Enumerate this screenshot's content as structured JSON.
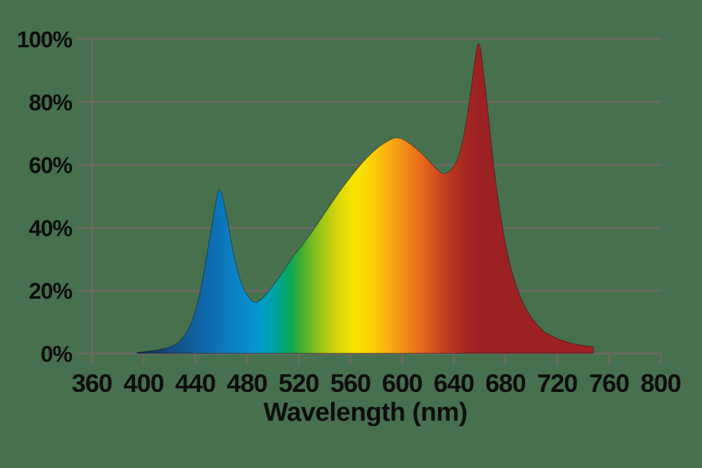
{
  "page": {
    "background_color": "#47704e"
  },
  "chart_data": {
    "type": "area",
    "xlabel": "Wavelength (nm)",
    "ylabel": "",
    "xlim": [
      360,
      800
    ],
    "ylim": [
      0,
      100
    ],
    "x_ticks": [
      360,
      400,
      440,
      480,
      520,
      560,
      600,
      640,
      680,
      720,
      760,
      800
    ],
    "x_tick_labels": [
      "360",
      "400",
      "440",
      "480",
      "520",
      "560",
      "600",
      "640",
      "680",
      "720",
      "760",
      "800"
    ],
    "y_ticks": [
      0,
      20,
      40,
      60,
      80,
      100
    ],
    "y_tick_labels": [
      "0%",
      "20%",
      "40%",
      "60%",
      "80%",
      "100%"
    ],
    "grid": "horizontal-gridlines-every-20pct",
    "legend": "none",
    "series": [
      {
        "name": "relative-spectral-intensity-pct",
        "points": [
          [
            395,
            0.3
          ],
          [
            405,
            0.8
          ],
          [
            415,
            1.5
          ],
          [
            425,
            3
          ],
          [
            432,
            6
          ],
          [
            438,
            11
          ],
          [
            444,
            20
          ],
          [
            450,
            34
          ],
          [
            455,
            46
          ],
          [
            458,
            52
          ],
          [
            461,
            50
          ],
          [
            465,
            42
          ],
          [
            470,
            31
          ],
          [
            476,
            22
          ],
          [
            482,
            17.5
          ],
          [
            487,
            16.3
          ],
          [
            493,
            18
          ],
          [
            500,
            21.5
          ],
          [
            508,
            26
          ],
          [
            515,
            30.5
          ],
          [
            522,
            34
          ],
          [
            530,
            38.5
          ],
          [
            540,
            44.5
          ],
          [
            550,
            50.5
          ],
          [
            560,
            56
          ],
          [
            570,
            61
          ],
          [
            580,
            65
          ],
          [
            590,
            67.8
          ],
          [
            596,
            68.6
          ],
          [
            602,
            67.8
          ],
          [
            610,
            65.5
          ],
          [
            618,
            62.5
          ],
          [
            626,
            59
          ],
          [
            632,
            57.2
          ],
          [
            638,
            58.5
          ],
          [
            644,
            63
          ],
          [
            649,
            72
          ],
          [
            653,
            83
          ],
          [
            657,
            95
          ],
          [
            659,
            98.5
          ],
          [
            661,
            96
          ],
          [
            664,
            86
          ],
          [
            668,
            71
          ],
          [
            672,
            56
          ],
          [
            677,
            42
          ],
          [
            682,
            31
          ],
          [
            688,
            22
          ],
          [
            695,
            15
          ],
          [
            702,
            10.5
          ],
          [
            710,
            7
          ],
          [
            720,
            4.8
          ],
          [
            730,
            3.4
          ],
          [
            740,
            2.6
          ],
          [
            748,
            2.2
          ]
        ]
      }
    ],
    "peaks_read_from_chart": [
      {
        "wavelength_nm": 458,
        "value_pct": 52
      },
      {
        "wavelength_nm": 596,
        "value_pct": 68.5
      },
      {
        "wavelength_nm": 659,
        "value_pct": 98.5
      }
    ],
    "valleys_read_from_chart": [
      {
        "wavelength_nm": 487,
        "value_pct": 16.5
      },
      {
        "wavelength_nm": 632,
        "value_pct": 57
      }
    ],
    "gradient_stops": [
      {
        "wavelength": 395,
        "color": "#0f2b4d"
      },
      {
        "wavelength": 420,
        "color": "#134a7e"
      },
      {
        "wavelength": 440,
        "color": "#10619f"
      },
      {
        "wavelength": 452,
        "color": "#0e6cb0"
      },
      {
        "wavelength": 468,
        "color": "#0b7ec2"
      },
      {
        "wavelength": 483,
        "color": "#0691d2"
      },
      {
        "wavelength": 495,
        "color": "#009fc0"
      },
      {
        "wavelength": 505,
        "color": "#00a38c"
      },
      {
        "wavelength": 514,
        "color": "#0ca653"
      },
      {
        "wavelength": 524,
        "color": "#4fb12d"
      },
      {
        "wavelength": 536,
        "color": "#96c31c"
      },
      {
        "wavelength": 550,
        "color": "#d8d60a"
      },
      {
        "wavelength": 563,
        "color": "#f7e400"
      },
      {
        "wavelength": 576,
        "color": "#fbd206"
      },
      {
        "wavelength": 590,
        "color": "#f8ad12"
      },
      {
        "wavelength": 604,
        "color": "#f1861a"
      },
      {
        "wavelength": 616,
        "color": "#e6661c"
      },
      {
        "wavelength": 628,
        "color": "#cc4a1e"
      },
      {
        "wavelength": 640,
        "color": "#b43220"
      },
      {
        "wavelength": 652,
        "color": "#a32422"
      },
      {
        "wavelength": 660,
        "color": "#9c2122"
      },
      {
        "wavelength": 800,
        "color": "#9c2122"
      }
    ],
    "colors": {
      "background": "#47704e",
      "gridline": "#6b6862",
      "axis_text": "#0e0e0e",
      "curve_edge": "rgba(0,0,0,0.40)"
    }
  }
}
